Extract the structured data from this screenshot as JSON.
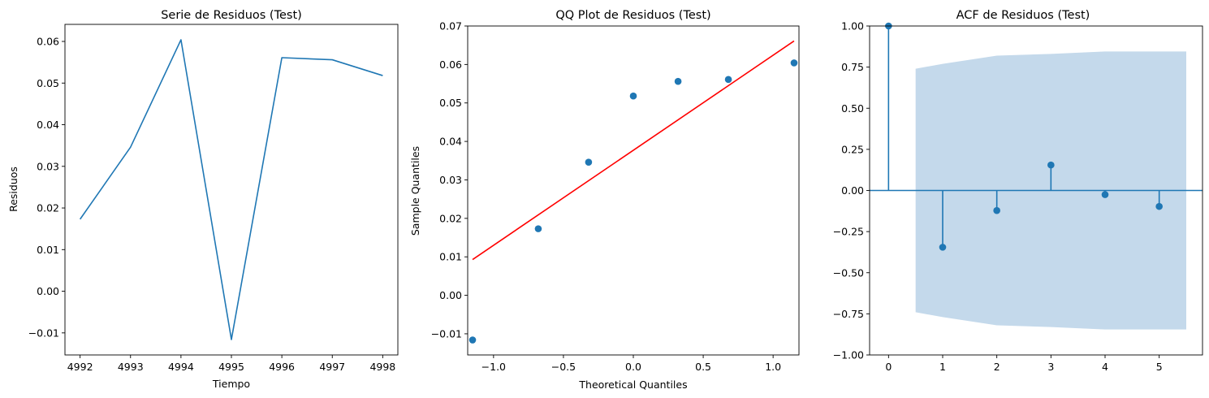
{
  "chart_data": [
    {
      "type": "line",
      "title": "Serie de Residuos (Test)",
      "xlabel": "Tiempo",
      "ylabel": "Residuos",
      "x": [
        4992,
        4993,
        4994,
        4995,
        4996,
        4997,
        4998
      ],
      "series": [
        {
          "values": [
            0.0173,
            0.0346,
            0.0604,
            -0.0116,
            0.0561,
            0.0556,
            0.0518
          ],
          "color": "#1f77b4"
        }
      ],
      "xlim": [
        4991.7,
        4998.3
      ],
      "ylim": [
        -0.0153,
        0.0641
      ],
      "xticks": [
        4992,
        4993,
        4994,
        4995,
        4996,
        4997,
        4998
      ],
      "xtick_labels": [
        "4992",
        "4993",
        "4994",
        "4995",
        "4996",
        "4997",
        "4998"
      ],
      "yticks": [
        -0.01,
        0.0,
        0.01,
        0.02,
        0.03,
        0.04,
        0.05,
        0.06
      ],
      "ytick_labels": [
        "−0.01",
        "0.00",
        "0.01",
        "0.02",
        "0.03",
        "0.04",
        "0.05",
        "0.06"
      ],
      "grid": false
    },
    {
      "type": "scatter",
      "title": "QQ Plot de Residuos (Test)",
      "xlabel": "Theoretical Quantiles",
      "ylabel": "Sample Quantiles",
      "points": {
        "x": [
          -1.15,
          -0.68,
          -0.32,
          0.0,
          0.32,
          0.68,
          1.15
        ],
        "y": [
          -0.0116,
          0.0173,
          0.0346,
          0.0518,
          0.0556,
          0.0561,
          0.0604
        ],
        "color": "#1f77b4"
      },
      "reference_line": {
        "x": [
          -1.15,
          1.15
        ],
        "y": [
          0.0093,
          0.0661
        ],
        "color": "#ff0000"
      },
      "xlim": [
        -1.185,
        1.185
      ],
      "ylim": [
        -0.0155,
        0.07
      ],
      "xticks": [
        -1.0,
        -0.5,
        0.0,
        0.5,
        1.0
      ],
      "xtick_labels": [
        "−1.0",
        "−0.5",
        "0.0",
        "0.5",
        "1.0"
      ],
      "yticks": [
        -0.01,
        0.0,
        0.01,
        0.02,
        0.03,
        0.04,
        0.05,
        0.06,
        0.07
      ],
      "ytick_labels": [
        "−0.01",
        "0.00",
        "0.01",
        "0.02",
        "0.03",
        "0.04",
        "0.05",
        "0.06",
        "0.07"
      ],
      "grid": false
    },
    {
      "type": "bar",
      "subtype": "stem",
      "title": "ACF de Residuos (Test)",
      "xlabel": "",
      "ylabel": "",
      "lags": [
        0,
        1,
        2,
        3,
        4,
        5
      ],
      "values": [
        1.0,
        -0.345,
        -0.122,
        0.155,
        -0.025,
        -0.097
      ],
      "color": "#1f77b4",
      "confidence_band": {
        "x": [
          0.5,
          1,
          2,
          3,
          4,
          5,
          5.5
        ],
        "upper": [
          0.74,
          0.77,
          0.82,
          0.83,
          0.845,
          0.845,
          0.845
        ],
        "lower": [
          -0.74,
          -0.77,
          -0.82,
          -0.83,
          -0.845,
          -0.845,
          -0.845
        ],
        "color": "#c4d9eb"
      },
      "xlim": [
        -0.35,
        5.8
      ],
      "ylim": [
        -1.0,
        1.0
      ],
      "xticks": [
        0,
        1,
        2,
        3,
        4,
        5
      ],
      "xtick_labels": [
        "0",
        "1",
        "2",
        "3",
        "4",
        "5"
      ],
      "yticks": [
        -1.0,
        -0.75,
        -0.5,
        -0.25,
        0.0,
        0.25,
        0.5,
        0.75,
        1.0
      ],
      "ytick_labels": [
        "−1.00",
        "−0.75",
        "−0.50",
        "−0.25",
        "0.00",
        "0.25",
        "0.50",
        "0.75",
        "1.00"
      ],
      "grid": false
    }
  ]
}
